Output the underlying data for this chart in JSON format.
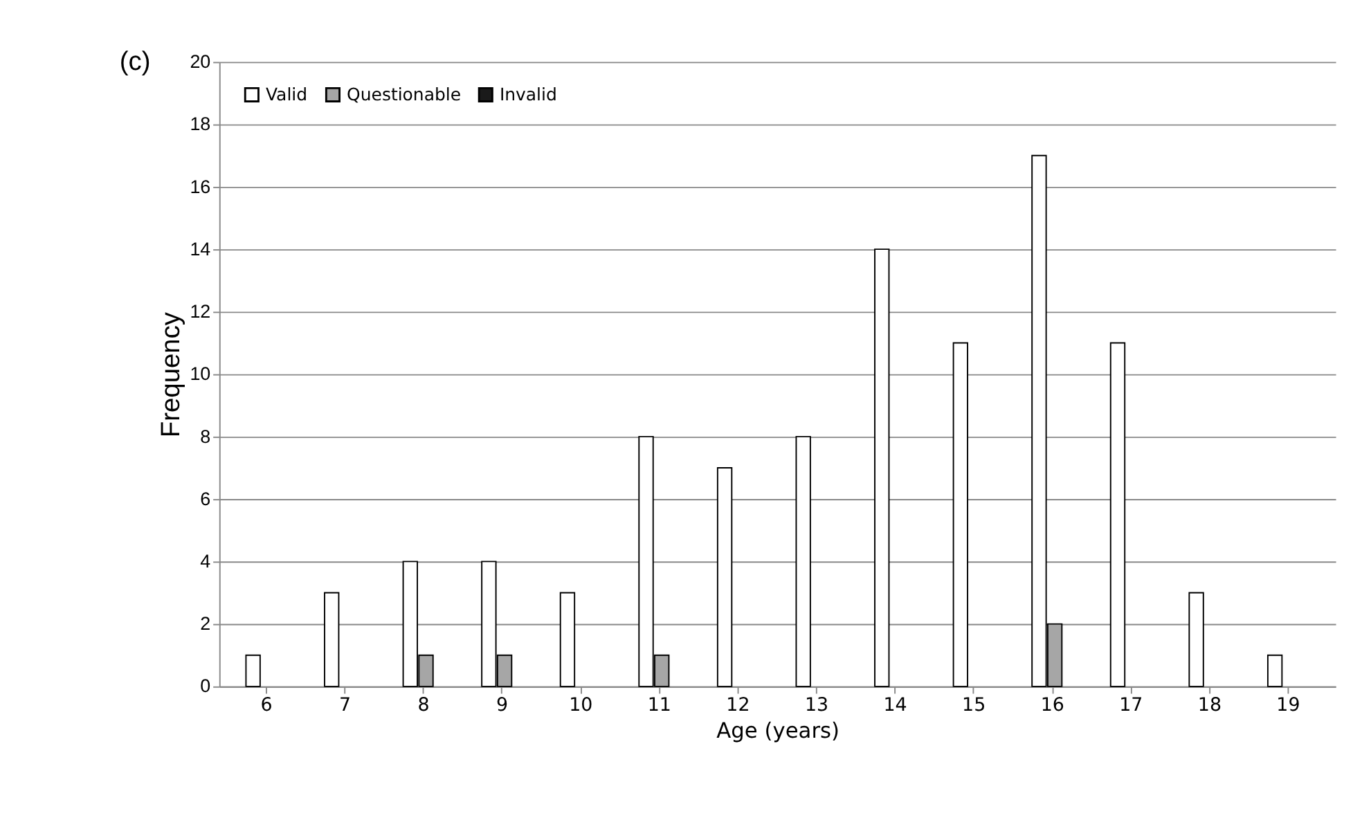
{
  "chart_data": {
    "type": "bar",
    "xlabel": "Age (years)",
    "ylabel": "Frequency",
    "categories": [
      "6",
      "7",
      "8",
      "9",
      "10",
      "11",
      "12",
      "13",
      "14",
      "15",
      "16",
      "17",
      "18",
      "19"
    ],
    "series": [
      {
        "name": "Valid",
        "color": "#ffffff",
        "values": [
          1,
          3,
          4,
          4,
          3,
          8,
          7,
          8,
          14,
          11,
          17,
          11,
          3,
          1
        ]
      },
      {
        "name": "Questionable",
        "color": "#a6a6a6",
        "values": [
          0,
          0,
          1,
          1,
          0,
          1,
          0,
          0,
          0,
          0,
          2,
          0,
          0,
          0
        ]
      },
      {
        "name": "Invalid",
        "color": "#1a1a1a",
        "values": [
          0,
          0,
          0,
          0,
          0,
          0,
          0,
          0,
          0,
          0,
          0,
          0,
          0,
          0
        ]
      }
    ],
    "ylim": [
      0,
      20
    ],
    "yticks": [
      0,
      2,
      4,
      6,
      8,
      10,
      12,
      14,
      16,
      18,
      20
    ],
    "grid": "y",
    "legend": "top left",
    "annotations": [
      "(c)"
    ]
  }
}
